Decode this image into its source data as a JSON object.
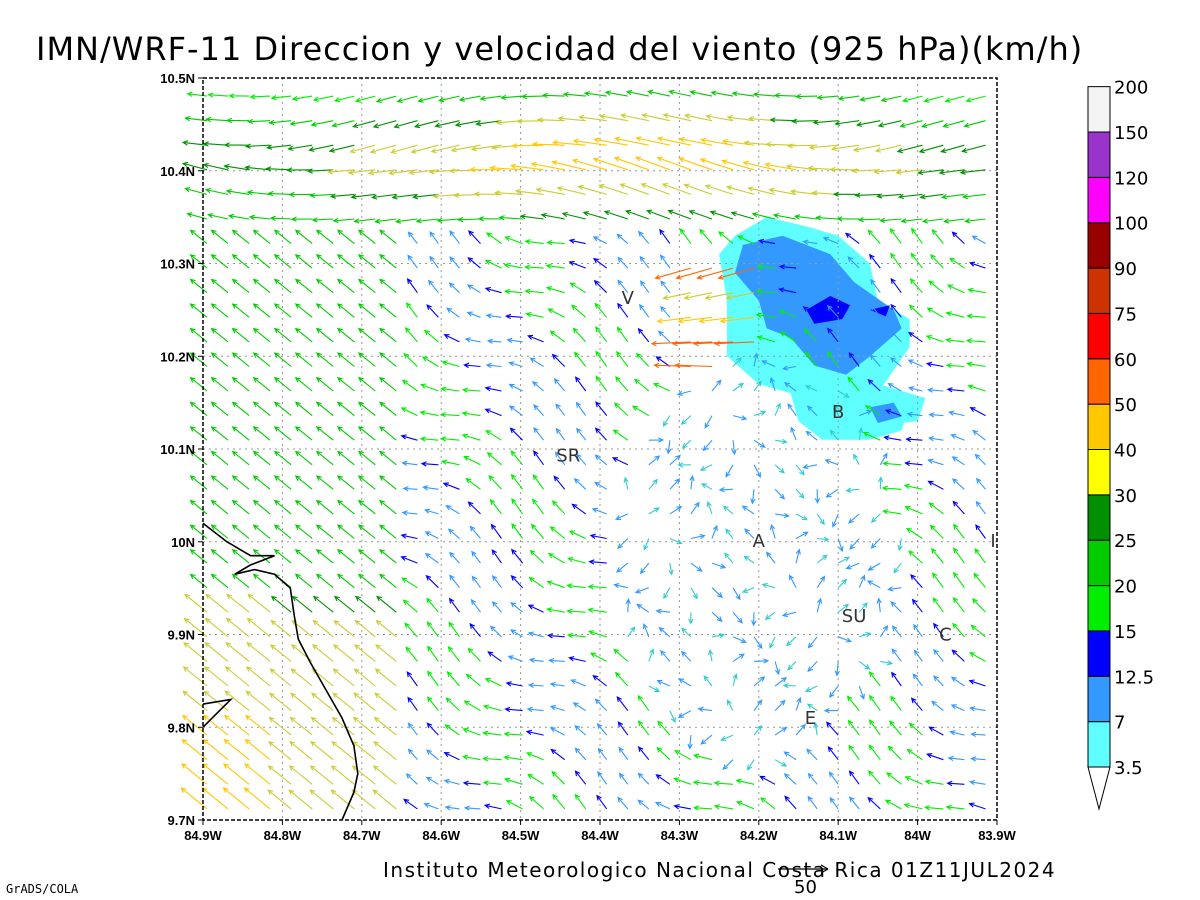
{
  "title": "IMN/WRF-11 Direccion y velocidad del viento (925 hPa)(km/h)",
  "footer": "Instituto Meteorologico Nacional Costa Rica 01Z11JUL2024",
  "credit": "GrADS/COLA",
  "reference_vector": {
    "label": "50",
    "value": 50,
    "units": "km/h"
  },
  "map": {
    "x_ticks": [
      "84.9W",
      "84.8W",
      "84.7W",
      "84.6W",
      "84.5W",
      "84.4W",
      "84.3W",
      "84.2W",
      "84.1W",
      "84W",
      "83.9W"
    ],
    "y_ticks": [
      "10.5N",
      "10.4N",
      "10.3N",
      "10.2N",
      "10.1N",
      "10N",
      "9.9N",
      "9.8N",
      "9.7N"
    ],
    "lon_range": [
      -84.9,
      -83.9
    ],
    "lat_range": [
      9.7,
      10.5
    ],
    "grid": true,
    "cities": [
      {
        "label": "V",
        "lon": -84.365,
        "lat": 10.263
      },
      {
        "label": "SR",
        "lon": -84.44,
        "lat": 10.093
      },
      {
        "label": "B",
        "lon": -84.1,
        "lat": 10.14
      },
      {
        "label": "A",
        "lon": -84.2,
        "lat": 10.001
      },
      {
        "label": "SU",
        "lon": -84.08,
        "lat": 9.92
      },
      {
        "label": "C",
        "lon": -83.965,
        "lat": 9.9
      },
      {
        "label": "E",
        "lon": -84.135,
        "lat": 9.81
      },
      {
        "label": "I",
        "lon": -83.905,
        "lat": 10.001
      }
    ],
    "coastline": [
      [
        -84.9,
        10.02
      ],
      [
        -84.87,
        10.0
      ],
      [
        -84.84,
        9.985
      ],
      [
        -84.81,
        9.985
      ],
      [
        -84.84,
        9.975
      ],
      [
        -84.86,
        9.965
      ],
      [
        -84.835,
        9.97
      ],
      [
        -84.81,
        9.965
      ],
      [
        -84.79,
        9.95
      ],
      [
        -84.785,
        9.92
      ],
      [
        -84.78,
        9.895
      ],
      [
        -84.765,
        9.87
      ],
      [
        -84.745,
        9.84
      ],
      [
        -84.725,
        9.81
      ],
      [
        -84.71,
        9.78
      ],
      [
        -84.705,
        9.75
      ],
      [
        -84.71,
        9.73
      ],
      [
        -84.725,
        9.7
      ]
    ],
    "coastline2": [
      [
        -84.9,
        9.8
      ],
      [
        -84.865,
        9.83
      ],
      [
        -84.9,
        9.825
      ]
    ]
  },
  "chart_data": {
    "type": "heatmap",
    "title": "IMN/WRF-11 Direccion y velocidad del viento (925 hPa)(km/h)",
    "variable": "wind direction and speed at 925 hPa",
    "units": "km/h",
    "colorbar": {
      "levels": [
        "3.5",
        "7",
        "12.5",
        "15",
        "20",
        "25",
        "30",
        "40",
        "50",
        "60",
        "75",
        "90",
        "100",
        "120",
        "150",
        "200"
      ],
      "colors": [
        "#60ffff",
        "#3399ff",
        "#0000ff",
        "#00ee00",
        "#00cc00",
        "#009000",
        "#ffff00",
        "#ffc800",
        "#ff6600",
        "#ff0000",
        "#cc3300",
        "#990000",
        "#ff00ff",
        "#9933cc",
        "#f4f4f4",
        "#aaaaaa"
      ]
    },
    "shaded_regions": [
      {
        "band": "3.5-7",
        "color": "#60ffff",
        "polygon": [
          [
            -84.23,
            10.33
          ],
          [
            -84.19,
            10.35
          ],
          [
            -84.14,
            10.34
          ],
          [
            -84.1,
            10.33
          ],
          [
            -84.06,
            10.3
          ],
          [
            -84.05,
            10.26
          ],
          [
            -84.01,
            10.24
          ],
          [
            -84.01,
            10.21
          ],
          [
            -84.05,
            10.16
          ],
          [
            -84.01,
            10.15
          ],
          [
            -84.02,
            10.12
          ],
          [
            -84.06,
            10.11
          ],
          [
            -84.12,
            10.11
          ],
          [
            -84.15,
            10.13
          ],
          [
            -84.16,
            10.16
          ],
          [
            -84.2,
            10.17
          ],
          [
            -84.24,
            10.2
          ],
          [
            -84.24,
            10.26
          ],
          [
            -84.25,
            10.31
          ]
        ]
      },
      {
        "band": "7-12.5",
        "color": "#3399ff",
        "polygon": [
          [
            -84.22,
            10.32
          ],
          [
            -84.17,
            10.33
          ],
          [
            -84.11,
            10.31
          ],
          [
            -84.08,
            10.28
          ],
          [
            -84.03,
            10.25
          ],
          [
            -84.02,
            10.23
          ],
          [
            -84.06,
            10.2
          ],
          [
            -84.09,
            10.18
          ],
          [
            -84.13,
            10.19
          ],
          [
            -84.16,
            10.22
          ],
          [
            -84.19,
            10.23
          ],
          [
            -84.2,
            10.26
          ],
          [
            -84.23,
            10.29
          ]
        ]
      },
      {
        "band": "12.5-15",
        "color": "#0000ff",
        "polygon": [
          [
            -84.14,
            10.25
          ],
          [
            -84.11,
            10.265
          ],
          [
            -84.085,
            10.255
          ],
          [
            -84.095,
            10.24
          ],
          [
            -84.13,
            10.235
          ]
        ]
      }
    ],
    "wind_field": "regular grid of vectors (~0.026 deg spacing); mostly easterly flow 7-20 km/h, strong easterly jet 40-60 km/h near 10.35-10.45N, weak flow (<7 km/h) over central valley"
  }
}
